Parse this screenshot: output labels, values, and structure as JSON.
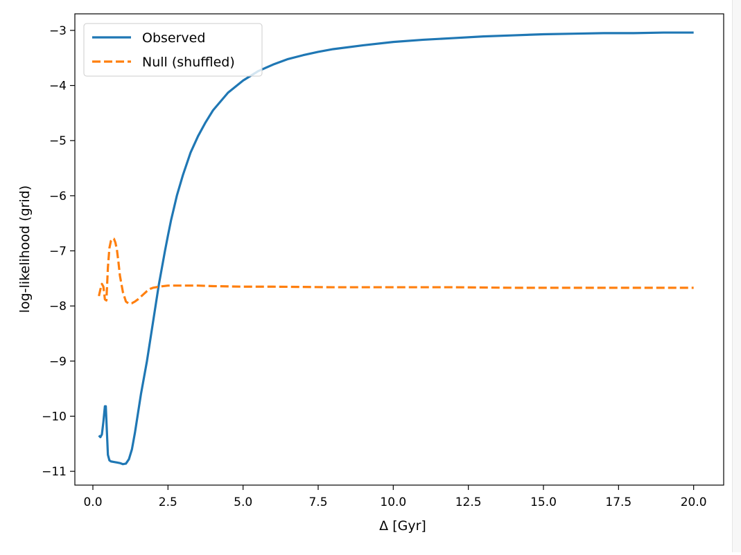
{
  "chart_data": {
    "type": "line",
    "xlabel": "Δ [Gyr]",
    "ylabel": "log-likelihood (grid)",
    "xlim": [
      -0.6,
      21.0
    ],
    "ylim": [
      -11.25,
      -2.7
    ],
    "xticks": [
      0.0,
      2.5,
      5.0,
      7.5,
      10.0,
      12.5,
      15.0,
      17.5,
      20.0
    ],
    "xtick_labels": [
      "0.0",
      "2.5",
      "5.0",
      "7.5",
      "10.0",
      "12.5",
      "15.0",
      "17.5",
      "20.0"
    ],
    "yticks": [
      -11,
      -10,
      -9,
      -8,
      -7,
      -6,
      -5,
      -4,
      -3
    ],
    "ytick_labels": [
      "−11",
      "−10",
      "−9",
      "−8",
      "−7",
      "−6",
      "−5",
      "−4",
      "−3"
    ],
    "grid": false,
    "legend_position": "upper-left",
    "series": [
      {
        "name": "Observed",
        "color": "#1f77b4",
        "linestyle": "solid",
        "x": [
          0.2,
          0.25,
          0.3,
          0.35,
          0.4,
          0.43,
          0.46,
          0.5,
          0.55,
          0.6,
          0.7,
          0.8,
          0.9,
          1.0,
          1.1,
          1.2,
          1.3,
          1.4,
          1.5,
          1.6,
          1.7,
          1.8,
          1.9,
          2.0,
          2.1,
          2.2,
          2.3,
          2.4,
          2.5,
          2.6,
          2.7,
          2.8,
          3.0,
          3.25,
          3.5,
          3.75,
          4.0,
          4.5,
          5.0,
          5.5,
          6.0,
          6.5,
          7.0,
          7.5,
          8.0,
          9.0,
          10.0,
          11.0,
          12.0,
          13.0,
          14.0,
          15.0,
          16.0,
          17.0,
          18.0,
          19.0,
          20.0
        ],
        "y": [
          -10.35,
          -10.38,
          -10.33,
          -10.1,
          -9.82,
          -9.82,
          -10.2,
          -10.7,
          -10.8,
          -10.82,
          -10.83,
          -10.84,
          -10.85,
          -10.87,
          -10.86,
          -10.78,
          -10.6,
          -10.3,
          -9.95,
          -9.6,
          -9.3,
          -9.0,
          -8.65,
          -8.3,
          -7.95,
          -7.6,
          -7.3,
          -7.0,
          -6.72,
          -6.45,
          -6.22,
          -5.99,
          -5.62,
          -5.22,
          -4.92,
          -4.67,
          -4.45,
          -4.13,
          -3.91,
          -3.74,
          -3.62,
          -3.52,
          -3.45,
          -3.39,
          -3.34,
          -3.27,
          -3.21,
          -3.17,
          -3.14,
          -3.11,
          -3.09,
          -3.07,
          -3.06,
          -3.05,
          -3.05,
          -3.04,
          -3.04
        ]
      },
      {
        "name": "Null (shuffled)",
        "color": "#ff7f0e",
        "linestyle": "dashed",
        "x": [
          0.2,
          0.25,
          0.3,
          0.35,
          0.4,
          0.45,
          0.5,
          0.55,
          0.6,
          0.65,
          0.7,
          0.75,
          0.8,
          0.85,
          0.9,
          1.0,
          1.1,
          1.2,
          1.3,
          1.4,
          1.5,
          1.6,
          1.7,
          1.8,
          1.9,
          2.0,
          2.2,
          2.5,
          3.0,
          3.5,
          4.0,
          5.0,
          6.0,
          8.0,
          10.0,
          12.0,
          14.0,
          16.0,
          18.0,
          20.0
        ],
        "y": [
          -7.82,
          -7.7,
          -7.6,
          -7.65,
          -7.88,
          -7.9,
          -7.3,
          -6.95,
          -6.82,
          -6.78,
          -6.78,
          -6.85,
          -6.98,
          -7.2,
          -7.45,
          -7.75,
          -7.92,
          -7.96,
          -7.95,
          -7.92,
          -7.88,
          -7.83,
          -7.78,
          -7.73,
          -7.69,
          -7.67,
          -7.65,
          -7.63,
          -7.63,
          -7.63,
          -7.64,
          -7.65,
          -7.65,
          -7.66,
          -7.66,
          -7.66,
          -7.67,
          -7.67,
          -7.67,
          -7.67
        ]
      }
    ]
  }
}
